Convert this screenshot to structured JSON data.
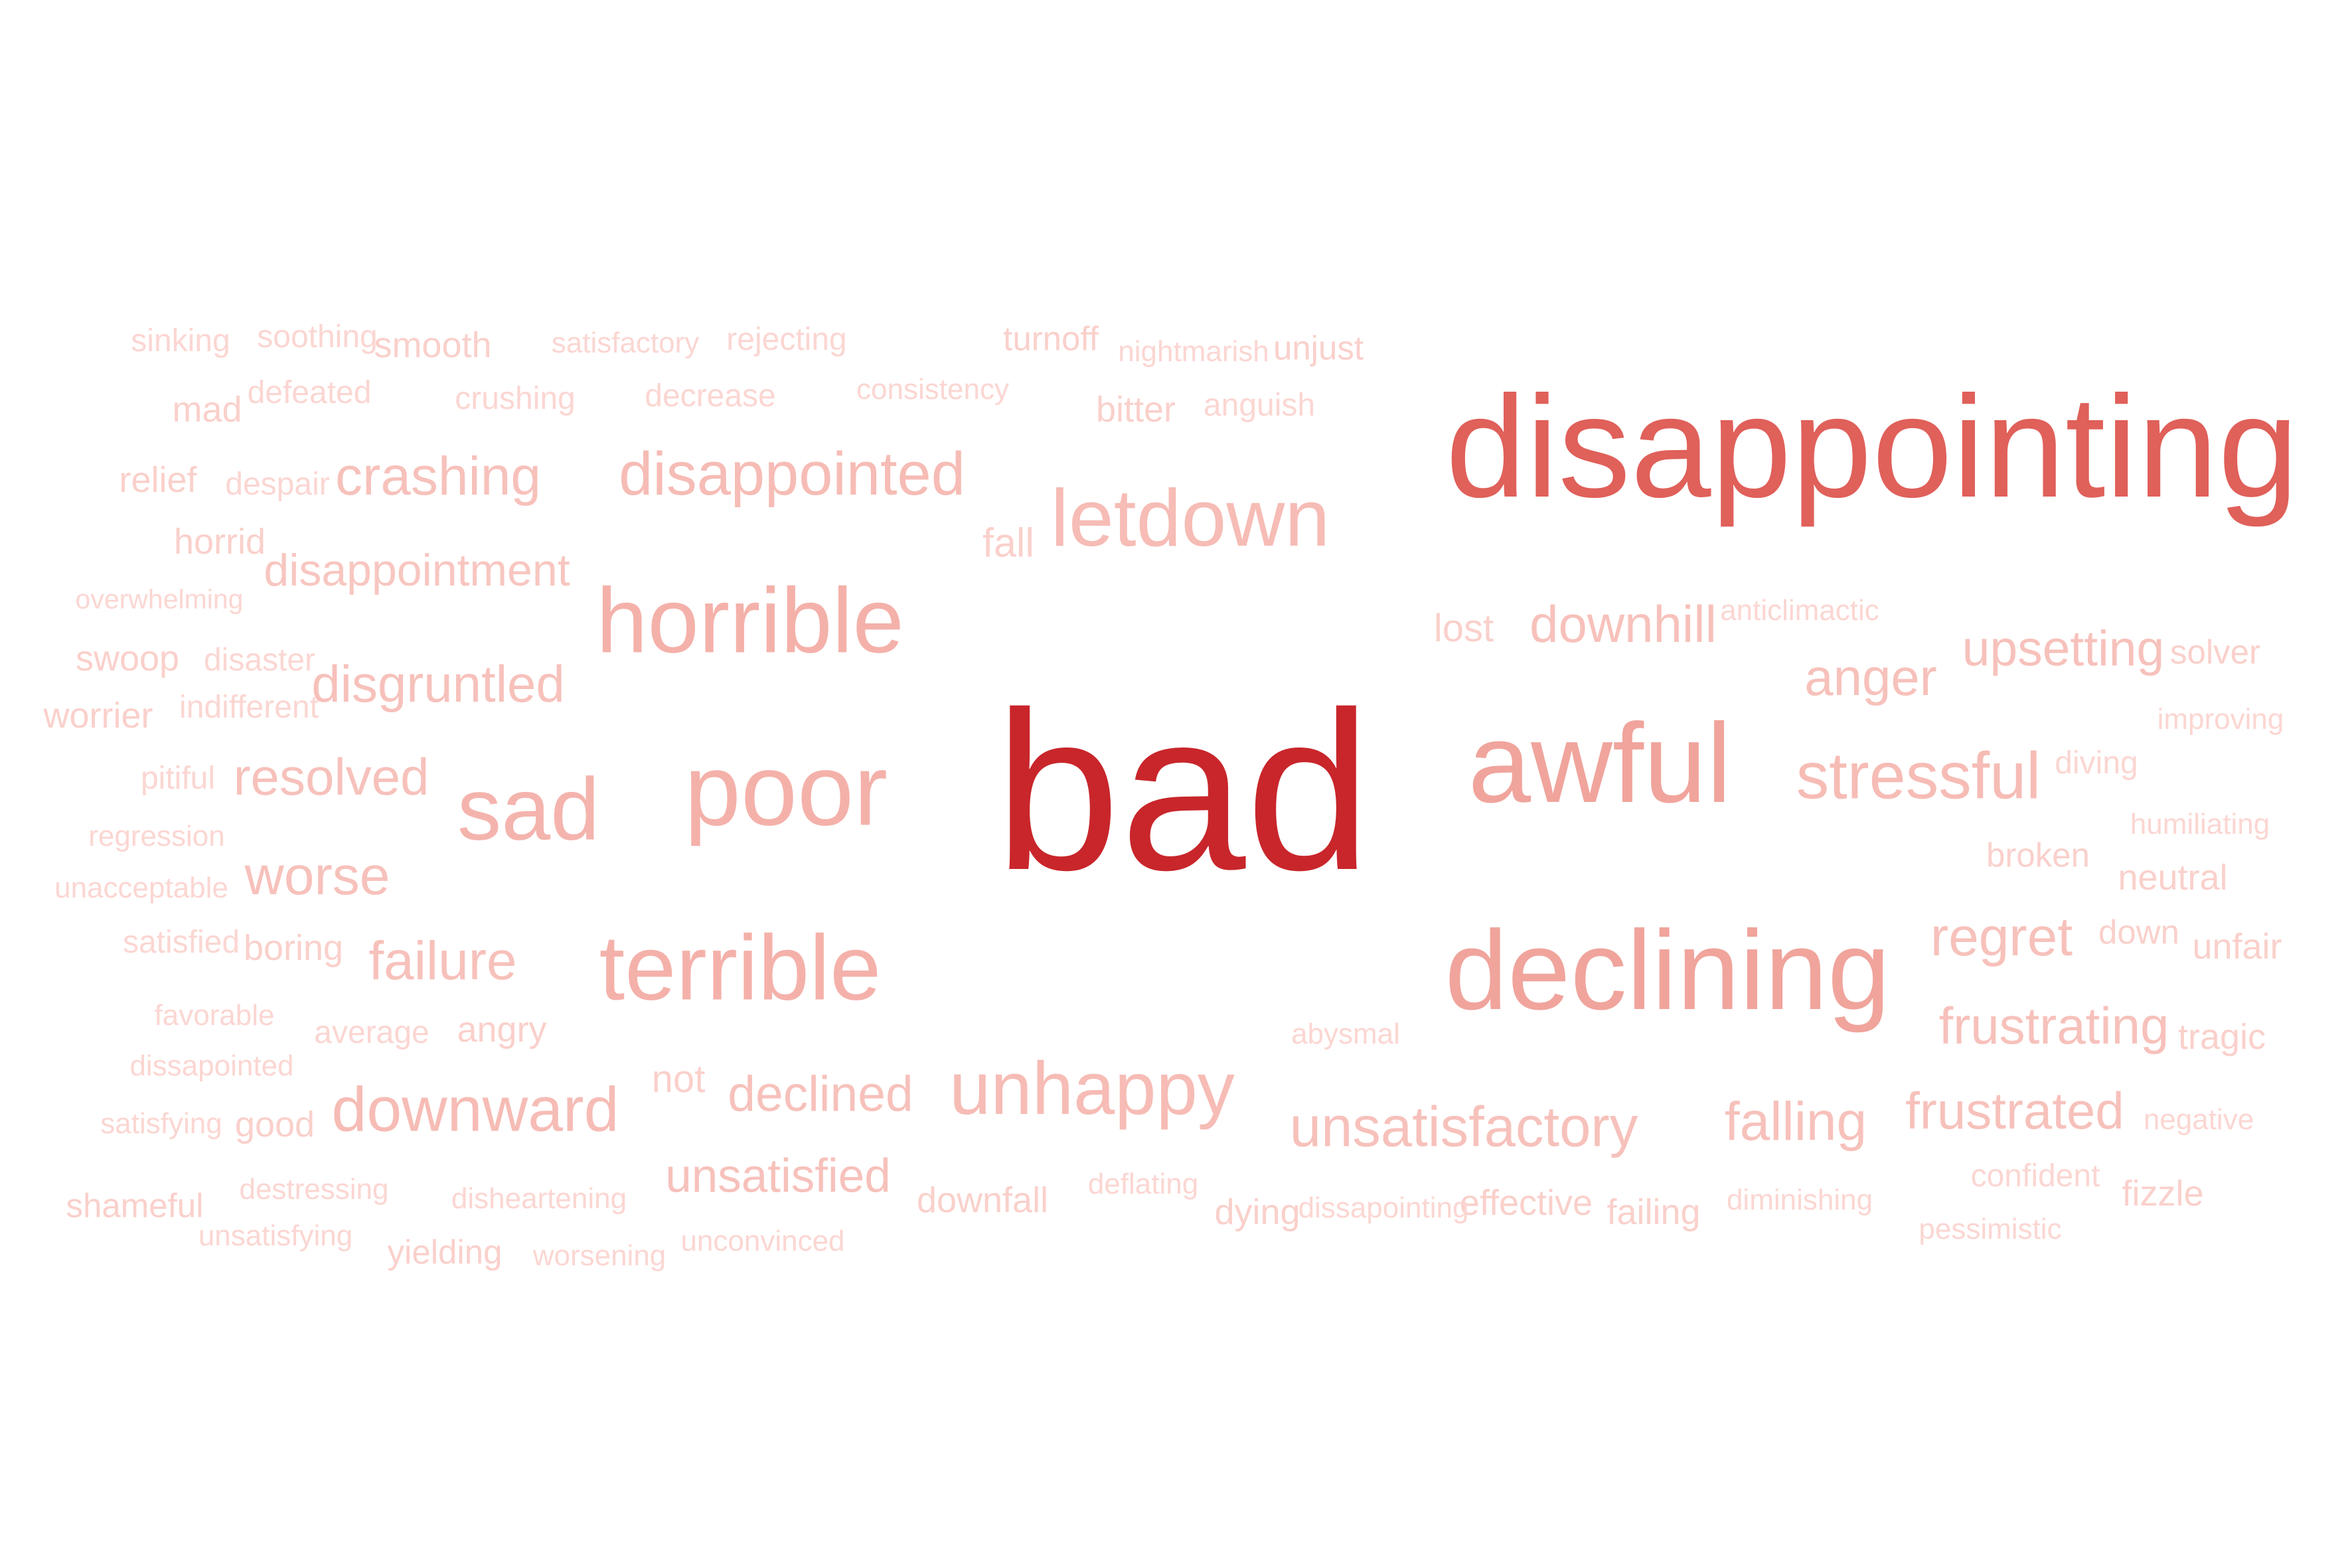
{
  "words": [
    {
      "text": "bad",
      "weight": 1.0,
      "color": "#c8262b"
    },
    {
      "text": "disappointing",
      "weight": 0.64,
      "color": "#e0605a"
    },
    {
      "text": "awful",
      "weight": 0.5,
      "color": "#f0a49c"
    },
    {
      "text": "declining",
      "weight": 0.5,
      "color": "#f0a49c"
    },
    {
      "text": "poor",
      "weight": 0.45,
      "color": "#f4b1aa"
    },
    {
      "text": "horrible",
      "weight": 0.41,
      "color": "#f4b1aa"
    },
    {
      "text": "terrible",
      "weight": 0.41,
      "color": "#f4b1aa"
    },
    {
      "text": "sad",
      "weight": 0.39,
      "color": "#f4b4ad"
    },
    {
      "text": "letdown",
      "weight": 0.36,
      "color": "#f6bcb5"
    },
    {
      "text": "unhappy",
      "weight": 0.33,
      "color": "#f6bcb5"
    },
    {
      "text": "stressful",
      "weight": 0.29,
      "color": "#f6bcb5"
    },
    {
      "text": "downward",
      "weight": 0.28,
      "color": "#f6bcb5"
    },
    {
      "text": "disappointed",
      "weight": 0.27,
      "color": "#f6bcb5"
    },
    {
      "text": "unsatisfactory",
      "weight": 0.25,
      "color": "#f7c1bb"
    },
    {
      "text": "crashing",
      "weight": 0.24,
      "color": "#f7c1bb"
    },
    {
      "text": "worse",
      "weight": 0.24,
      "color": "#f7c1bb"
    },
    {
      "text": "failure",
      "weight": 0.24,
      "color": "#f7c1bb"
    },
    {
      "text": "regret",
      "weight": 0.24,
      "color": "#f7c1bb"
    },
    {
      "text": "falling",
      "weight": 0.24,
      "color": "#f7c1bb"
    },
    {
      "text": "frustrated",
      "weight": 0.23,
      "color": "#f7c1bb"
    },
    {
      "text": "resolved",
      "weight": 0.23,
      "color": "#f7c1bb"
    },
    {
      "text": "disgruntled",
      "weight": 0.23,
      "color": "#f7c1bb"
    },
    {
      "text": "frustrating",
      "weight": 0.23,
      "color": "#f7c1bb"
    },
    {
      "text": "anger",
      "weight": 0.23,
      "color": "#f7c1bb"
    },
    {
      "text": "downhill",
      "weight": 0.23,
      "color": "#f7c1bb"
    },
    {
      "text": "upsetting",
      "weight": 0.22,
      "color": "#f7c1bb"
    },
    {
      "text": "declined",
      "weight": 0.22,
      "color": "#f7c1bb"
    },
    {
      "text": "unsatisfied",
      "weight": 0.21,
      "color": "#f7c1bb"
    },
    {
      "text": "disappointment",
      "weight": 0.2,
      "color": "#f8c6c0"
    },
    {
      "text": "fall",
      "weight": 0.18,
      "color": "#fad0cb"
    },
    {
      "text": "lost",
      "weight": 0.17,
      "color": "#fad0cb"
    },
    {
      "text": "not",
      "weight": 0.17,
      "color": "#fad0cb"
    },
    {
      "text": "angry",
      "weight": 0.16,
      "color": "#fad0cb"
    },
    {
      "text": "smooth",
      "weight": 0.16,
      "color": "#fad0cb"
    },
    {
      "text": "mad",
      "weight": 0.16,
      "color": "#fad0cb"
    },
    {
      "text": "bitter",
      "weight": 0.16,
      "color": "#fad0cb"
    },
    {
      "text": "relief",
      "weight": 0.16,
      "color": "#fad0cb"
    },
    {
      "text": "horrid",
      "weight": 0.16,
      "color": "#fad0cb"
    },
    {
      "text": "swoop",
      "weight": 0.16,
      "color": "#fad0cb"
    },
    {
      "text": "worrier",
      "weight": 0.16,
      "color": "#fad0cb"
    },
    {
      "text": "boring",
      "weight": 0.16,
      "color": "#fad0cb"
    },
    {
      "text": "good",
      "weight": 0.16,
      "color": "#fad0cb"
    },
    {
      "text": "yielding",
      "weight": 0.15,
      "color": "#fad0cb"
    },
    {
      "text": "shameful",
      "weight": 0.15,
      "color": "#fad0cb"
    },
    {
      "text": "dying",
      "weight": 0.16,
      "color": "#fad0cb"
    },
    {
      "text": "effective",
      "weight": 0.16,
      "color": "#fad0cb"
    },
    {
      "text": "failing",
      "weight": 0.16,
      "color": "#fad0cb"
    },
    {
      "text": "fizzle",
      "weight": 0.16,
      "color": "#fad0cb"
    },
    {
      "text": "downfall",
      "weight": 0.16,
      "color": "#fad0cb"
    },
    {
      "text": "tragic",
      "weight": 0.16,
      "color": "#fad0cb"
    },
    {
      "text": "unfair",
      "weight": 0.16,
      "color": "#fad0cb"
    },
    {
      "text": "neutral",
      "weight": 0.16,
      "color": "#fad0cb"
    },
    {
      "text": "broken",
      "weight": 0.15,
      "color": "#fad0cb"
    },
    {
      "text": "down",
      "weight": 0.15,
      "color": "#fad0cb"
    },
    {
      "text": "solver",
      "weight": 0.15,
      "color": "#fad0cb"
    },
    {
      "text": "unjust",
      "weight": 0.15,
      "color": "#fad0cb"
    },
    {
      "text": "turnoff",
      "weight": 0.15,
      "color": "#fad0cb"
    },
    {
      "text": "sinking",
      "weight": 0.14,
      "color": "#fbd6d2"
    },
    {
      "text": "soothing",
      "weight": 0.14,
      "color": "#fbd6d2"
    },
    {
      "text": "defeated",
      "weight": 0.14,
      "color": "#fbd6d2"
    },
    {
      "text": "despair",
      "weight": 0.14,
      "color": "#fbd6d2"
    },
    {
      "text": "disaster",
      "weight": 0.14,
      "color": "#fbd6d2"
    },
    {
      "text": "indifferent",
      "weight": 0.14,
      "color": "#fbd6d2"
    },
    {
      "text": "pitiful",
      "weight": 0.14,
      "color": "#fbd6d2"
    },
    {
      "text": "satisfied",
      "weight": 0.14,
      "color": "#fbd6d2"
    },
    {
      "text": "average",
      "weight": 0.14,
      "color": "#fbd6d2"
    },
    {
      "text": "satisfying",
      "weight": 0.13,
      "color": "#fbd6d2"
    },
    {
      "text": "favorable",
      "weight": 0.13,
      "color": "#fbd6d2"
    },
    {
      "text": "anguish",
      "weight": 0.14,
      "color": "#fbd6d2"
    },
    {
      "text": "rejecting",
      "weight": 0.14,
      "color": "#fbd6d2"
    },
    {
      "text": "decrease",
      "weight": 0.14,
      "color": "#fbd6d2"
    },
    {
      "text": "crushing",
      "weight": 0.14,
      "color": "#fbd6d2"
    },
    {
      "text": "diving",
      "weight": 0.14,
      "color": "#fbd6d2"
    },
    {
      "text": "confident",
      "weight": 0.14,
      "color": "#fbd6d2"
    },
    {
      "text": "unconvinced",
      "weight": 0.13,
      "color": "#fbd6d2"
    },
    {
      "text": "destressing",
      "weight": 0.13,
      "color": "#fbd6d2"
    },
    {
      "text": "deflating",
      "weight": 0.13,
      "color": "#fbd6d2"
    },
    {
      "text": "abysmal",
      "weight": 0.13,
      "color": "#fbd6d2"
    },
    {
      "text": "worsening",
      "weight": 0.13,
      "color": "#fbd6d2"
    },
    {
      "text": "improving",
      "weight": 0.13,
      "color": "#fbd6d2"
    },
    {
      "text": "humiliating",
      "weight": 0.13,
      "color": "#fbd6d2"
    },
    {
      "text": "diminishing",
      "weight": 0.13,
      "color": "#fbd6d2"
    },
    {
      "text": "negative",
      "weight": 0.13,
      "color": "#fbd6d2"
    },
    {
      "text": "consistency",
      "weight": 0.13,
      "color": "#fbd6d2"
    },
    {
      "text": "nightmarish",
      "weight": 0.13,
      "color": "#fbd6d2"
    },
    {
      "text": "satisfactory",
      "weight": 0.13,
      "color": "#fbd6d2"
    },
    {
      "text": "anticlimactic",
      "weight": 0.13,
      "color": "#fbd6d2"
    },
    {
      "text": "regression",
      "weight": 0.13,
      "color": "#fbd6d2"
    },
    {
      "text": "unacceptable",
      "weight": 0.13,
      "color": "#fbd6d2"
    },
    {
      "text": "dissapointed",
      "weight": 0.13,
      "color": "#fbd6d2"
    },
    {
      "text": "unsatisfying",
      "weight": 0.13,
      "color": "#fbd6d2"
    },
    {
      "text": "disheartening",
      "weight": 0.13,
      "color": "#fbd6d2"
    },
    {
      "text": "dissapointing",
      "weight": 0.13,
      "color": "#fbd6d2"
    },
    {
      "text": "pessimistic",
      "weight": 0.13,
      "color": "#fbd6d2"
    },
    {
      "text": "overwhelming",
      "weight": 0.12,
      "color": "#fbd6d2"
    }
  ]
}
